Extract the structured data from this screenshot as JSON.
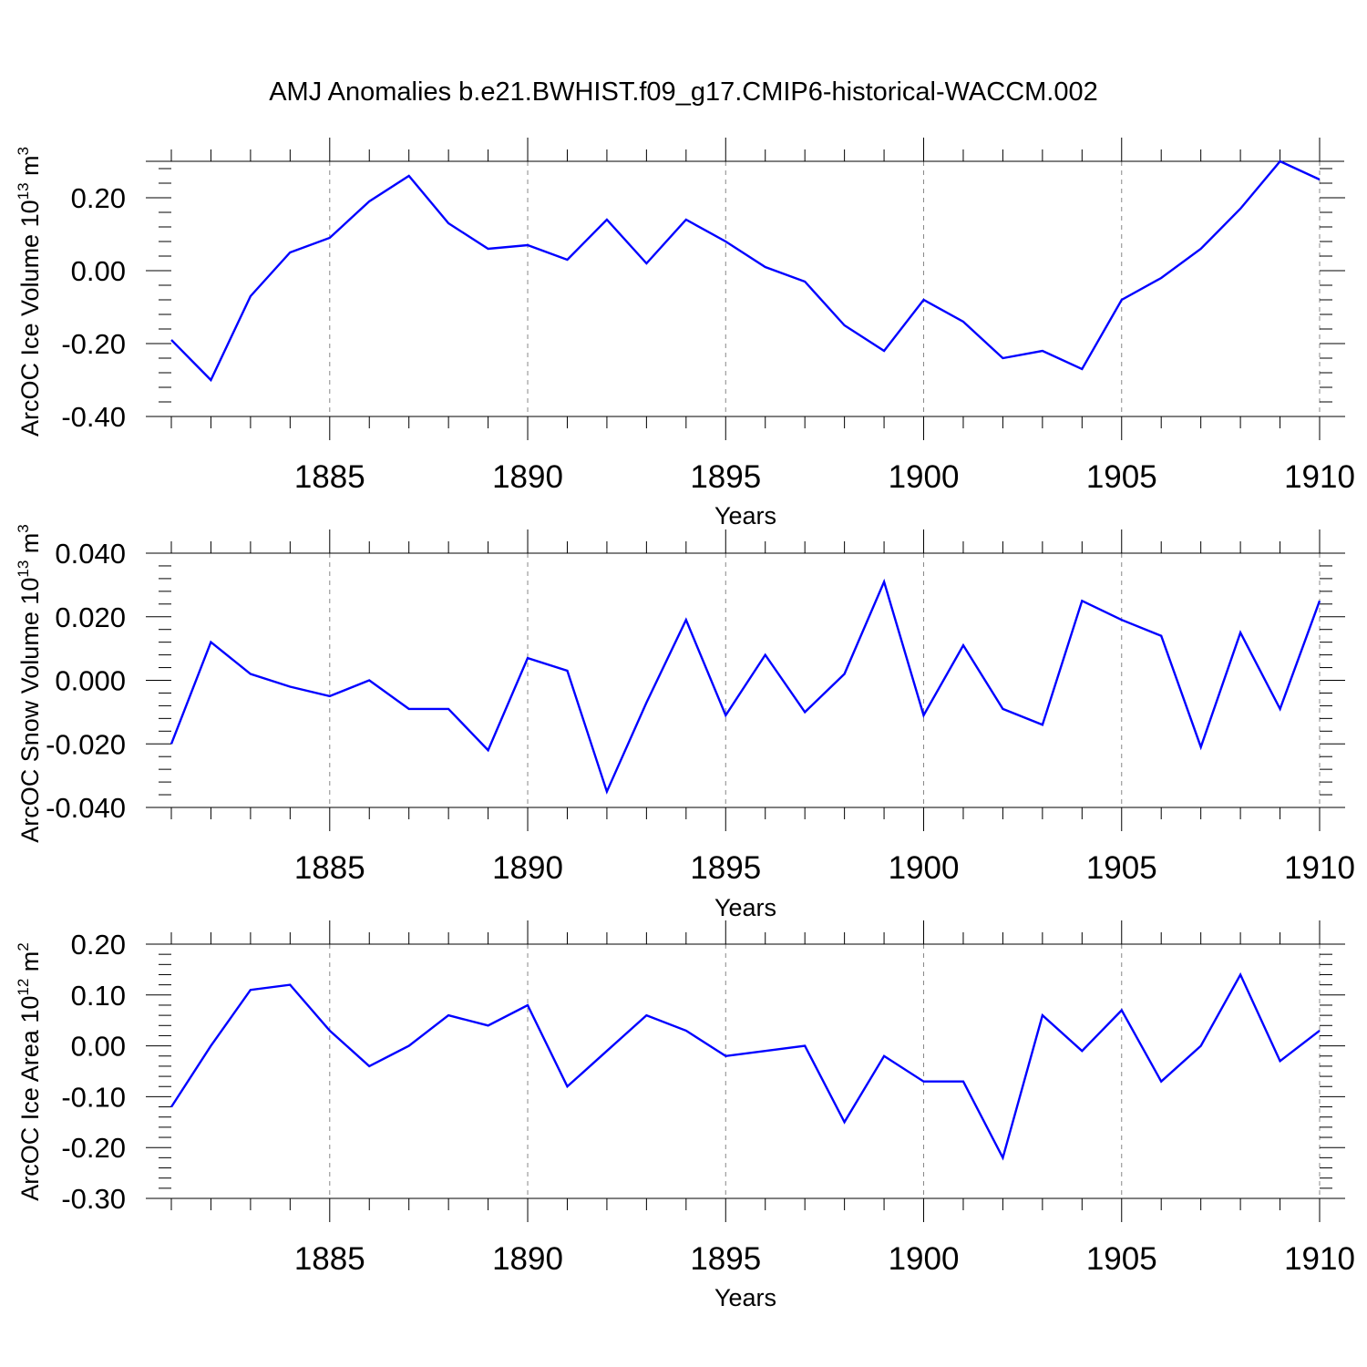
{
  "title": "AMJ Anomalies b.e21.BWHIST.f09_g17.CMIP6-historical-WACCM.002",
  "line_color": "#0000ff",
  "chart_data": [
    {
      "type": "line",
      "ylabel": {
        "main": "ArcOC Ice Volume 10",
        "exp": "13",
        "unit": " m",
        "unit_exp": "3"
      },
      "xlabel": "Years",
      "xlim": [
        1881,
        1910
      ],
      "ylim": [
        -0.4,
        0.3
      ],
      "xticks": [
        1885,
        1890,
        1895,
        1900,
        1905,
        1910
      ],
      "xtick_labels": [
        "1885",
        "1890",
        "1895",
        "1900",
        "1905",
        "1910"
      ],
      "yticks": [
        -0.4,
        -0.2,
        0.0,
        0.2
      ],
      "ytick_labels": [
        "-0.40",
        "-0.20",
        "0.00",
        "0.20"
      ],
      "grid": "vertical dashed at major x ticks",
      "series": [
        {
          "x": [
            1881,
            1882,
            1883,
            1884,
            1885,
            1886,
            1887,
            1888,
            1889,
            1890,
            1891,
            1892,
            1893,
            1894,
            1895,
            1896,
            1897,
            1898,
            1899,
            1900,
            1901,
            1902,
            1903,
            1904,
            1905,
            1906,
            1907,
            1908,
            1909,
            1910
          ],
          "y": [
            -0.19,
            -0.3,
            -0.07,
            0.05,
            0.09,
            0.19,
            0.26,
            0.13,
            0.06,
            0.07,
            0.03,
            0.14,
            0.02,
            0.14,
            0.08,
            0.01,
            -0.03,
            -0.15,
            -0.22,
            -0.08,
            -0.14,
            -0.24,
            -0.22,
            -0.27,
            -0.08,
            -0.02,
            0.06,
            0.17,
            0.3,
            0.25
          ]
        }
      ]
    },
    {
      "type": "line",
      "ylabel": {
        "main": "ArcOC Snow Volume 10",
        "exp": "13",
        "unit": " m",
        "unit_exp": "3"
      },
      "xlabel": "Years",
      "xlim": [
        1881,
        1910
      ],
      "ylim": [
        -0.04,
        0.04
      ],
      "xticks": [
        1885,
        1890,
        1895,
        1900,
        1905,
        1910
      ],
      "xtick_labels": [
        "1885",
        "1890",
        "1895",
        "1900",
        "1905",
        "1910"
      ],
      "yticks": [
        -0.04,
        -0.02,
        0.0,
        0.02,
        0.04
      ],
      "ytick_labels": [
        "-0.040",
        "-0.020",
        "0.000",
        "0.020",
        "0.040"
      ],
      "grid": "vertical dashed at major x ticks",
      "series": [
        {
          "x": [
            1881,
            1882,
            1883,
            1884,
            1885,
            1886,
            1887,
            1888,
            1889,
            1890,
            1891,
            1892,
            1893,
            1894,
            1895,
            1896,
            1897,
            1898,
            1899,
            1900,
            1901,
            1902,
            1903,
            1904,
            1905,
            1906,
            1907,
            1908,
            1909,
            1910
          ],
          "y": [
            -0.02,
            0.012,
            0.002,
            -0.002,
            -0.005,
            0.0,
            -0.009,
            -0.009,
            -0.022,
            0.007,
            0.003,
            -0.035,
            -0.007,
            0.019,
            -0.011,
            0.008,
            -0.01,
            0.002,
            0.031,
            -0.011,
            0.011,
            -0.009,
            -0.014,
            0.025,
            0.019,
            0.014,
            -0.021,
            0.015,
            -0.009,
            0.025
          ]
        }
      ]
    },
    {
      "type": "line",
      "ylabel": {
        "main": "ArcOC Ice Area 10",
        "exp": "12",
        "unit": " m",
        "unit_exp": "2"
      },
      "xlabel": "Years",
      "xlim": [
        1881,
        1910
      ],
      "ylim": [
        -0.3,
        0.2
      ],
      "xticks": [
        1885,
        1890,
        1895,
        1900,
        1905,
        1910
      ],
      "xtick_labels": [
        "1885",
        "1890",
        "1895",
        "1900",
        "1905",
        "1910"
      ],
      "yticks": [
        -0.3,
        -0.2,
        -0.1,
        0.0,
        0.1,
        0.2
      ],
      "ytick_labels": [
        "-0.30",
        "-0.20",
        "-0.10",
        "0.00",
        "0.10",
        "0.20"
      ],
      "grid": "vertical dashed at major x ticks",
      "series": [
        {
          "x": [
            1881,
            1882,
            1883,
            1884,
            1885,
            1886,
            1887,
            1888,
            1889,
            1890,
            1891,
            1892,
            1893,
            1894,
            1895,
            1896,
            1897,
            1898,
            1899,
            1900,
            1901,
            1902,
            1903,
            1904,
            1905,
            1906,
            1907,
            1908,
            1909,
            1910
          ],
          "y": [
            -0.12,
            0.0,
            0.11,
            0.12,
            0.03,
            -0.04,
            0.0,
            0.06,
            0.04,
            0.08,
            -0.08,
            -0.01,
            0.06,
            0.03,
            -0.02,
            -0.01,
            0.0,
            -0.15,
            -0.02,
            -0.07,
            -0.07,
            -0.22,
            0.06,
            -0.01,
            0.07,
            -0.07,
            0.0,
            0.14,
            -0.03,
            0.03
          ]
        }
      ]
    }
  ]
}
